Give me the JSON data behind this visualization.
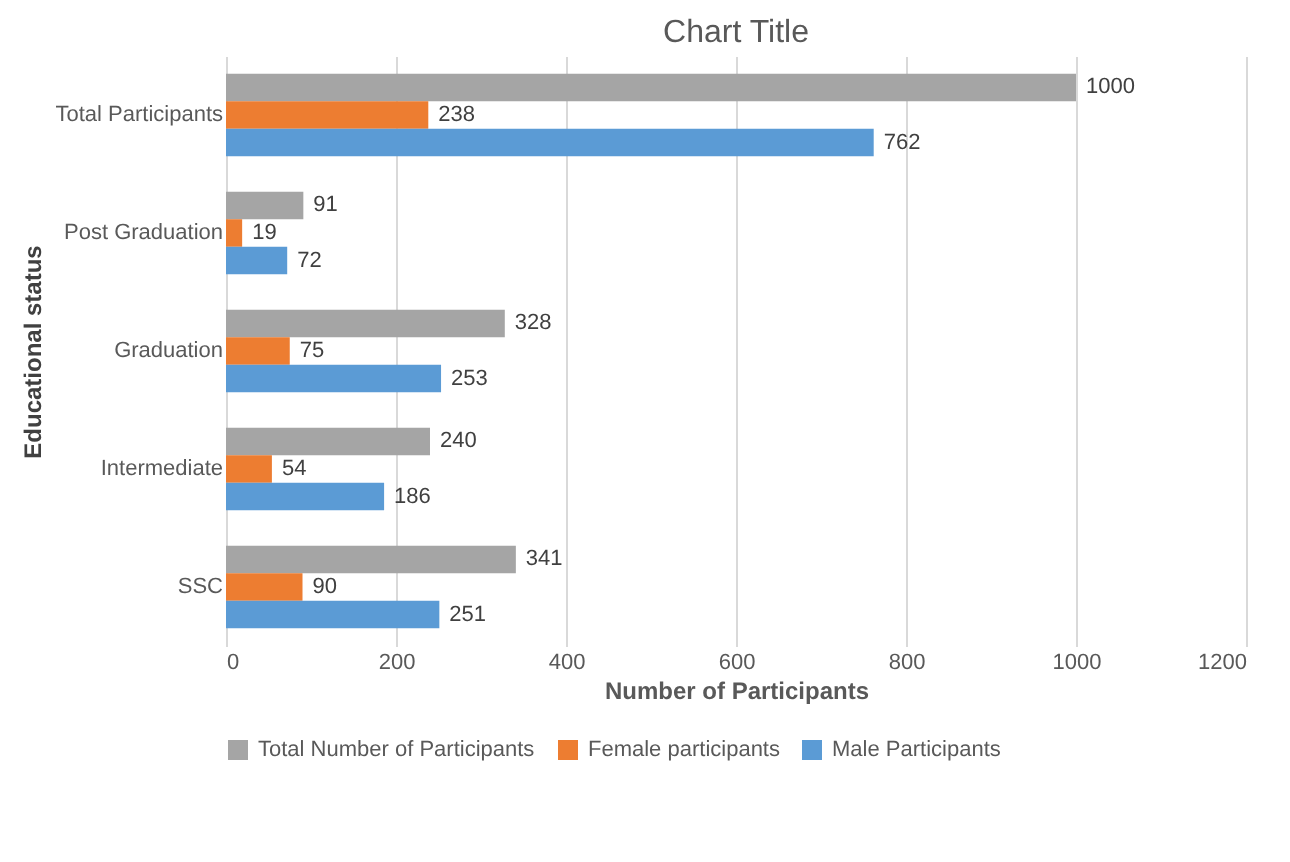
{
  "chart_data": {
    "type": "bar",
    "orientation": "horizontal",
    "title": "Chart Title",
    "xlabel": "Number of Participants",
    "ylabel": "Educational status",
    "categories": [
      "Total Participants",
      "Post Graduation",
      "Graduation",
      "Intermediate",
      "SSC"
    ],
    "series": [
      {
        "name": "Total Number of Participants",
        "color": "#a5a5a5",
        "values": [
          1000,
          91,
          328,
          240,
          341
        ]
      },
      {
        "name": "Female participants",
        "color": "#ed7d31",
        "values": [
          238,
          19,
          75,
          54,
          90
        ]
      },
      {
        "name": "Male Participants",
        "color": "#5b9bd5",
        "values": [
          762,
          72,
          253,
          186,
          251
        ]
      }
    ],
    "xlim": [
      0,
      1200
    ],
    "xticks": [
      0,
      200,
      400,
      600,
      800,
      1000,
      1200
    ],
    "grid": "x",
    "legend": "bottom",
    "data_labels": true
  }
}
